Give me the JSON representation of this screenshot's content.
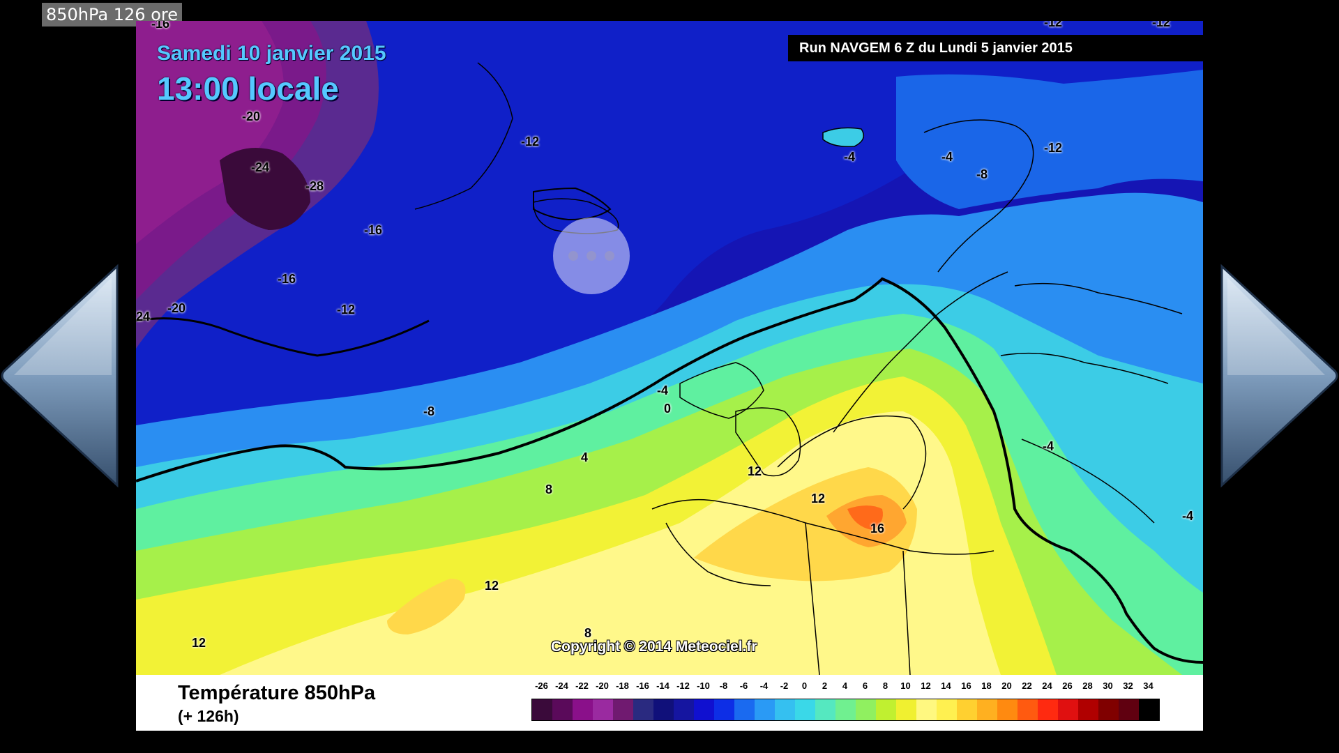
{
  "window": {
    "title": "850hPa 126 ore"
  },
  "map": {
    "date_text": "Samedi 10 janvier 2015",
    "time_text": "13:00 locale",
    "run_text": "Run NAVGEM 6 Z du Lundi 5 janvier 2015",
    "copyright": "Copyright © 2014 Meteociel.fr",
    "labels": [
      {
        "text": "-16"
      },
      {
        "text": "-12"
      },
      {
        "text": "-12"
      },
      {
        "text": "-20"
      },
      {
        "text": "-24"
      },
      {
        "text": "-28"
      },
      {
        "text": "-12"
      },
      {
        "text": "-16"
      },
      {
        "text": "-16"
      },
      {
        "text": "-20"
      },
      {
        "text": "24"
      },
      {
        "text": "-12"
      },
      {
        "text": "-8"
      },
      {
        "text": "-4"
      },
      {
        "text": "-4"
      },
      {
        "text": "-8"
      },
      {
        "text": "-12"
      },
      {
        "text": "-4"
      },
      {
        "text": "0"
      },
      {
        "text": "4"
      },
      {
        "text": "8"
      },
      {
        "text": "12"
      },
      {
        "text": "12"
      },
      {
        "text": "16"
      },
      {
        "text": "12"
      },
      {
        "text": "12"
      },
      {
        "text": "8"
      },
      {
        "text": "-4"
      },
      {
        "text": "-4"
      }
    ]
  },
  "legend": {
    "title": "Température 850hPa",
    "subtitle": "(+ 126h)",
    "scale_values": [
      "-26",
      "-24",
      "-22",
      "-20",
      "-18",
      "-16",
      "-14",
      "-12",
      "-10",
      "-8",
      "-6",
      "-4",
      "-2",
      "0",
      "2",
      "4",
      "6",
      "8",
      "10",
      "12",
      "14",
      "16",
      "18",
      "20",
      "22",
      "24",
      "26",
      "28",
      "30",
      "32",
      "34"
    ],
    "scale_colors": [
      "#3a0a3a",
      "#5a0a5a",
      "#8a108a",
      "#9a2aa0",
      "#701a70",
      "#2a2a80",
      "#10107a",
      "#1515a0",
      "#1010d0",
      "#0d2ee6",
      "#1a6af0",
      "#2a9af5",
      "#35c0f0",
      "#3ad8e8",
      "#55e8c0",
      "#70f090",
      "#90f060",
      "#c0f030",
      "#f0f030",
      "#fff880",
      "#fff050",
      "#ffd030",
      "#ffb020",
      "#ff8a10",
      "#ff5a10",
      "#ff2a10",
      "#e01010",
      "#b00000",
      "#800000",
      "#600010",
      "#000000"
    ]
  },
  "navigation": {
    "prev_label": "previous",
    "next_label": "next"
  },
  "colors": {
    "background": "#000000",
    "label_bg": "#6b6b6b",
    "title_blue": "#55c8ff"
  }
}
